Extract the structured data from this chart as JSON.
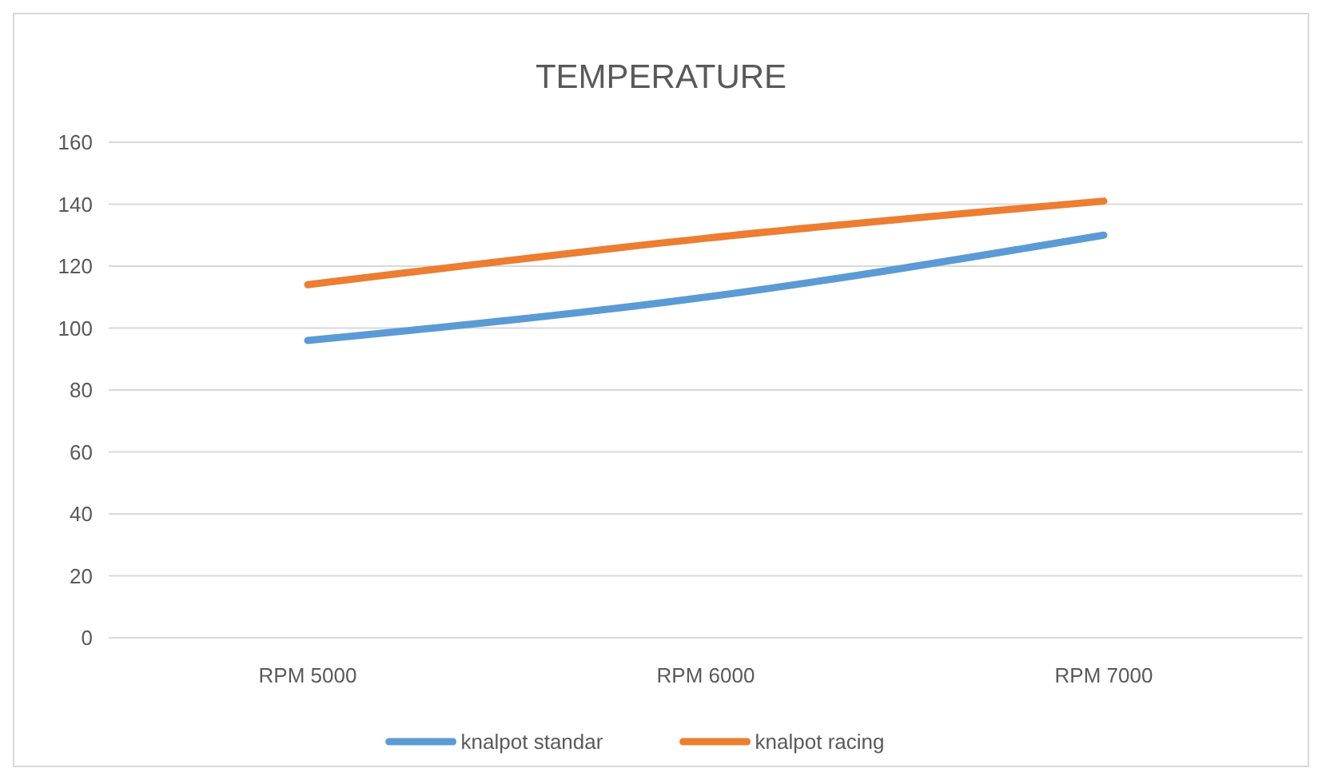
{
  "chart_data": {
    "type": "line",
    "title": "TEMPERATURE",
    "categories": [
      "RPM 5000",
      "RPM 6000",
      "RPM 7000"
    ],
    "series": [
      {
        "name": "knalpot standar",
        "color": "#5b9bd5",
        "values": [
          96,
          110,
          130
        ]
      },
      {
        "name": "knalpot racing",
        "color": "#ed7d31",
        "values": [
          114,
          129,
          141
        ]
      }
    ],
    "ylim": [
      0,
      160
    ],
    "yticks": [
      0,
      20,
      40,
      60,
      80,
      100,
      120,
      140,
      160
    ],
    "grid": "y",
    "legend": "bottom",
    "marker": "none",
    "line_style": "solid"
  }
}
